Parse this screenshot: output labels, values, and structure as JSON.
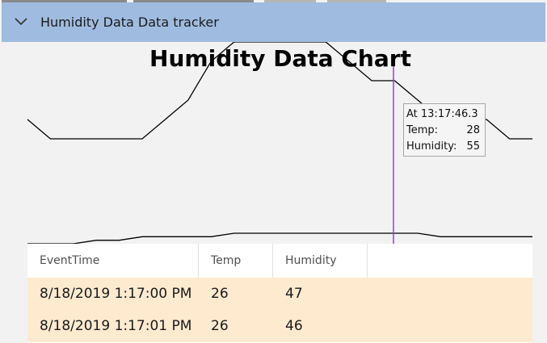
{
  "header": {
    "title": "Humidity Data Data tracker",
    "expand_icon": "chevron-down-icon"
  },
  "chart_data": {
    "type": "line",
    "title": "Humidity Data Chart",
    "xlabel": "",
    "ylabel": "",
    "series": [
      {
        "values": [
          27,
          26,
          26,
          26,
          26,
          26,
          27,
          28,
          30,
          31,
          31,
          31,
          31,
          31,
          30,
          29,
          29,
          28,
          27,
          27,
          27,
          26,
          26
        ]
      },
      {
        "values": [
          45,
          45,
          45,
          46,
          46,
          47,
          47,
          47,
          47,
          48,
          48,
          48,
          48,
          48,
          48,
          48,
          48,
          48,
          47,
          47,
          47,
          47,
          47
        ]
      }
    ],
    "tooltip": {
      "time_label": "At 13:17:46.3",
      "temp_label": "Temp:",
      "temp_value": "28",
      "humidity_label": "Humidity:",
      "humidity_value": "55"
    },
    "cursor_color": "#a23bd1",
    "line_color": "#000000"
  },
  "grid": {
    "columns": [
      "EventTime",
      "Temp",
      "Humidity"
    ],
    "rows": [
      {
        "time": "8/18/2019 1:17:00 PM",
        "temp": "26",
        "humidity": "47"
      },
      {
        "time": "8/18/2019 1:17:01 PM",
        "temp": "26",
        "humidity": "46"
      }
    ],
    "row_color": "#fdeacf"
  },
  "colors": {
    "header_bg": "#9fbce0",
    "page_bg": "#f2f2f2"
  }
}
